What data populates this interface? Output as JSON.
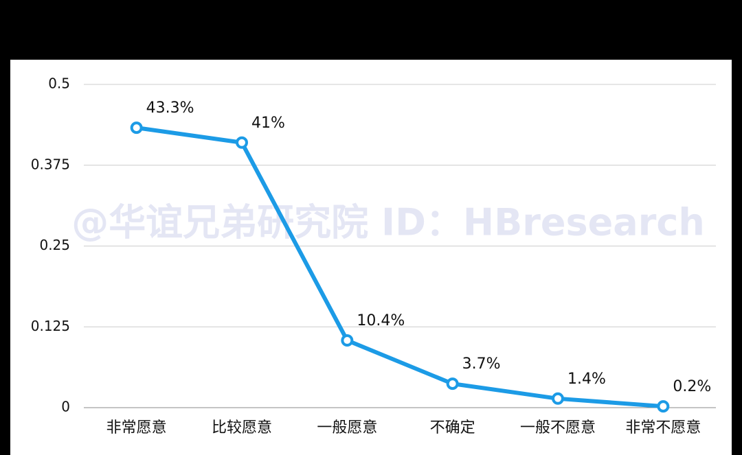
{
  "chart_data": {
    "type": "line",
    "watermark": "@华谊兄弟研究院 ID：HBresearch",
    "categories": [
      "非常愿意",
      "比较愿意",
      "一般愿意",
      "不确定",
      "一般不愿意",
      "非常不愿意"
    ],
    "values": [
      0.433,
      0.41,
      0.104,
      0.037,
      0.014,
      0.002
    ],
    "value_labels": [
      "43.3%",
      "41%",
      "10.4%",
      "3.7%",
      "1.4%",
      "0.2%"
    ],
    "color": "#1c9be6",
    "ylim": [
      0,
      0.5
    ],
    "yticks": [
      0,
      0.125,
      0.25,
      0.375,
      0.5
    ],
    "grid": true
  }
}
